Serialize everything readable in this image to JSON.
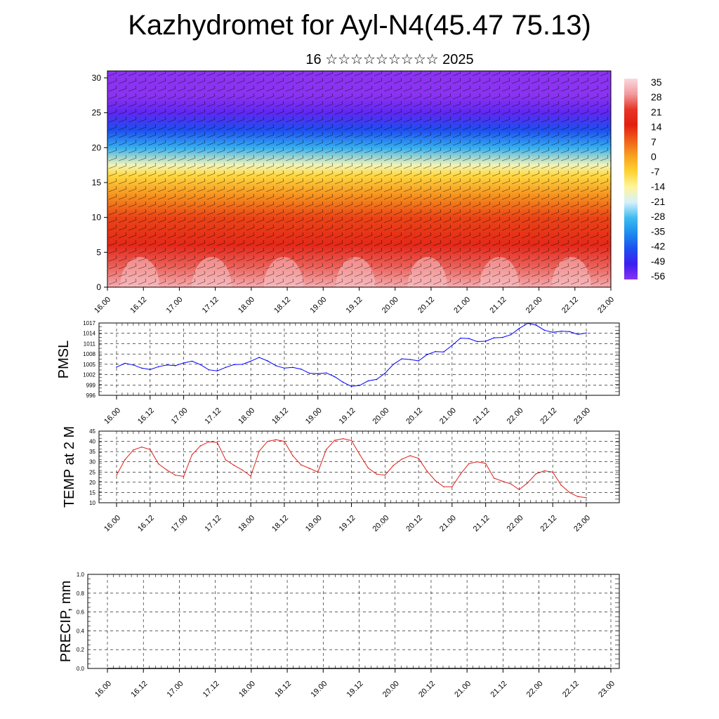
{
  "page": {
    "title": "Kazhydromet for Ayl-N4(45.47 75.13)",
    "subtitle": "16 ☆☆☆☆☆☆☆☆☆ 2025"
  },
  "chart_data": [
    {
      "type": "heatmap",
      "name": "temperature-wind cross-section",
      "xlabel": "",
      "ylabel": "",
      "ylim": [
        0,
        31
      ],
      "yticks": [
        0,
        5,
        10,
        15,
        20,
        25,
        30
      ],
      "xticks": [
        "16.00",
        "16.12",
        "17.00",
        "17.12",
        "18.00",
        "18.12",
        "19.00",
        "19.12",
        "20.00",
        "20.12",
        "21.00",
        "21.12",
        "22.00",
        "22.12",
        "23.00"
      ],
      "wind_barbs": true,
      "colorbar": {
        "labels": [
          "35",
          "28",
          "21",
          "14",
          "7",
          "0",
          "-7",
          "-14",
          "-21",
          "-28",
          "-35",
          "-42",
          "-49",
          "-56"
        ],
        "colors": [
          "#fbd8dd",
          "#f29a9e",
          "#e63525",
          "#e31f10",
          "#f0601a",
          "#f7a21f",
          "#fed230",
          "#fff59c",
          "#d6f1fb",
          "#3fbcf0",
          "#1d8cef",
          "#1e4ff0",
          "#3d1ef1",
          "#8a33f0"
        ]
      },
      "layers": [
        {
          "height": 0,
          "value": 30
        },
        {
          "height": 3,
          "value": 24
        },
        {
          "height": 6,
          "value": 17
        },
        {
          "height": 10,
          "value": 10
        },
        {
          "height": 13,
          "value": 2
        },
        {
          "height": 16,
          "value": -8
        },
        {
          "height": 17.5,
          "value": -16
        },
        {
          "height": 20,
          "value": -30
        },
        {
          "height": 22.5,
          "value": -42
        },
        {
          "height": 25,
          "value": -52
        },
        {
          "height": 27.5,
          "value": -57
        },
        {
          "height": 31,
          "value": -59
        }
      ]
    },
    {
      "type": "line",
      "ylabel": "PMSL",
      "ylim": [
        996,
        1017
      ],
      "yticks": [
        996,
        999,
        1002,
        1005,
        1008,
        1011,
        1014,
        1017
      ],
      "grid": true,
      "color": "#0000ff",
      "xticks": [
        "16.00",
        "16.12",
        "17.00",
        "17.12",
        "18.00",
        "18.12",
        "19.00",
        "19.12",
        "20.00",
        "20.12",
        "21.00",
        "21.12",
        "22.00",
        "22.12",
        "23.00"
      ],
      "x": [
        0,
        3,
        6,
        9,
        12,
        15,
        18,
        21,
        24,
        27,
        30,
        33,
        36,
        39,
        42,
        45,
        48,
        51,
        54,
        57,
        60,
        63,
        66,
        69,
        72,
        75,
        78,
        81,
        84,
        87,
        90,
        93,
        96,
        99,
        102,
        105,
        108,
        111,
        114,
        117,
        120,
        123,
        126,
        129,
        132,
        135,
        138,
        141,
        144,
        147,
        150,
        153,
        156,
        159,
        162,
        165,
        168
      ],
      "values": [
        1004.2,
        1005.3,
        1004.8,
        1003.9,
        1003.5,
        1004.3,
        1004.8,
        1004.6,
        1005.4,
        1005.9,
        1004.9,
        1003.4,
        1003.1,
        1004.1,
        1004.9,
        1005.0,
        1005.9,
        1007.0,
        1006.0,
        1004.6,
        1003.9,
        1004.1,
        1003.6,
        1002.4,
        1002.3,
        1002.5,
        1001.4,
        999.8,
        998.6,
        998.9,
        1000.2,
        1000.6,
        1002.4,
        1005.0,
        1006.6,
        1006.4,
        1006.0,
        1007.8,
        1008.7,
        1008.6,
        1010.5,
        1012.6,
        1012.5,
        1011.6,
        1011.7,
        1012.7,
        1012.8,
        1013.6,
        1015.4,
        1016.9,
        1016.4,
        1014.9,
        1014.3,
        1014.6,
        1014.5,
        1013.7,
        1014.1
      ]
    },
    {
      "type": "line",
      "ylabel": "TEMP at 2 M",
      "ylim": [
        10,
        45
      ],
      "yticks": [
        10,
        15,
        20,
        25,
        30,
        35,
        40,
        45
      ],
      "grid": true,
      "color": "#e0201a",
      "xticks": [
        "16.00",
        "16.12",
        "17.00",
        "17.12",
        "18.00",
        "18.12",
        "19.00",
        "19.12",
        "20.00",
        "20.12",
        "21.00",
        "21.12",
        "22.00",
        "22.12",
        "23.00"
      ],
      "x": [
        0,
        3,
        6,
        9,
        12,
        15,
        18,
        21,
        24,
        27,
        30,
        33,
        36,
        39,
        42,
        45,
        48,
        51,
        54,
        57,
        60,
        63,
        66,
        69,
        72,
        75,
        78,
        81,
        84,
        87,
        90,
        93,
        96,
        99,
        102,
        105,
        108,
        111,
        114,
        117,
        120,
        123,
        126,
        129,
        132,
        135,
        138,
        141,
        144,
        147,
        150,
        153,
        156,
        159,
        162,
        165,
        168
      ],
      "values": [
        23.5,
        31.0,
        35.8,
        37.2,
        36.0,
        29.0,
        26.0,
        23.5,
        22.9,
        33.5,
        37.8,
        39.8,
        39.5,
        31.0,
        28.3,
        26.0,
        23.0,
        35.2,
        40.0,
        40.8,
        40.0,
        33.0,
        28.5,
        26.8,
        25.0,
        36.0,
        40.5,
        41.3,
        40.4,
        33.5,
        27.0,
        24.0,
        23.5,
        28.2,
        31.3,
        33.0,
        31.7,
        25.5,
        20.8,
        17.8,
        17.8,
        24.0,
        29.1,
        30.0,
        29.2,
        22.0,
        20.5,
        19.2,
        16.4,
        19.7,
        24.1,
        25.6,
        25.0,
        18.6,
        15.0,
        13.0,
        12.5
      ]
    },
    {
      "type": "line",
      "ylabel": "PRECIP, mm",
      "ylim": [
        0,
        1.0
      ],
      "yticks": [
        "0.0",
        "0.2",
        "0.4",
        "0.6",
        "0.8",
        "1.0"
      ],
      "grid": true,
      "color": "#000000",
      "xticks": [
        "16.00",
        "16.12",
        "17.00",
        "17.12",
        "18.00",
        "18.12",
        "19.00",
        "19.12",
        "20.00",
        "20.12",
        "21.00",
        "21.12",
        "22.00",
        "22.12",
        "23.00"
      ],
      "values": [
        0,
        0,
        0,
        0,
        0,
        0,
        0,
        0,
        0,
        0,
        0,
        0,
        0,
        0,
        0
      ]
    }
  ]
}
